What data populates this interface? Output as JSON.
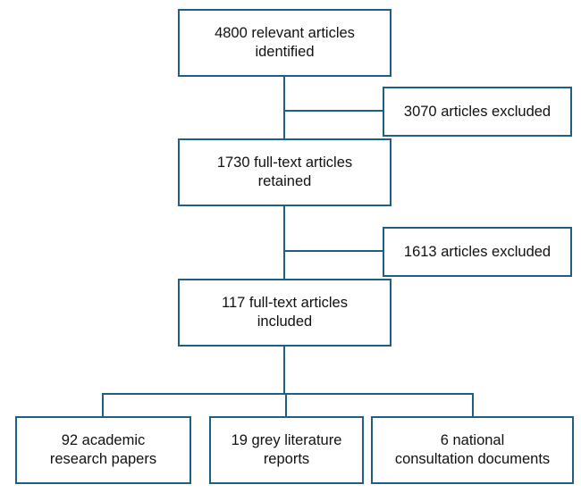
{
  "diagram": {
    "line_color": "#1f5f86",
    "box_border_color": "#1f5f86",
    "boxes": {
      "identified": {
        "line1": "4800 relevant articles",
        "line2": "identified"
      },
      "excluded_first": {
        "line1": "3070 articles excluded"
      },
      "retained": {
        "line1": "1730 full-text articles",
        "line2": "retained"
      },
      "excluded_second": {
        "line1": "1613 articles excluded"
      },
      "included": {
        "line1": "117 full-text articles",
        "line2": "included"
      },
      "academic": {
        "line1": "92 academic",
        "line2": "research papers"
      },
      "grey": {
        "line1": "19 grey literature",
        "line2": "reports"
      },
      "national": {
        "line1": "6 national",
        "line2": "consultation documents"
      }
    }
  }
}
